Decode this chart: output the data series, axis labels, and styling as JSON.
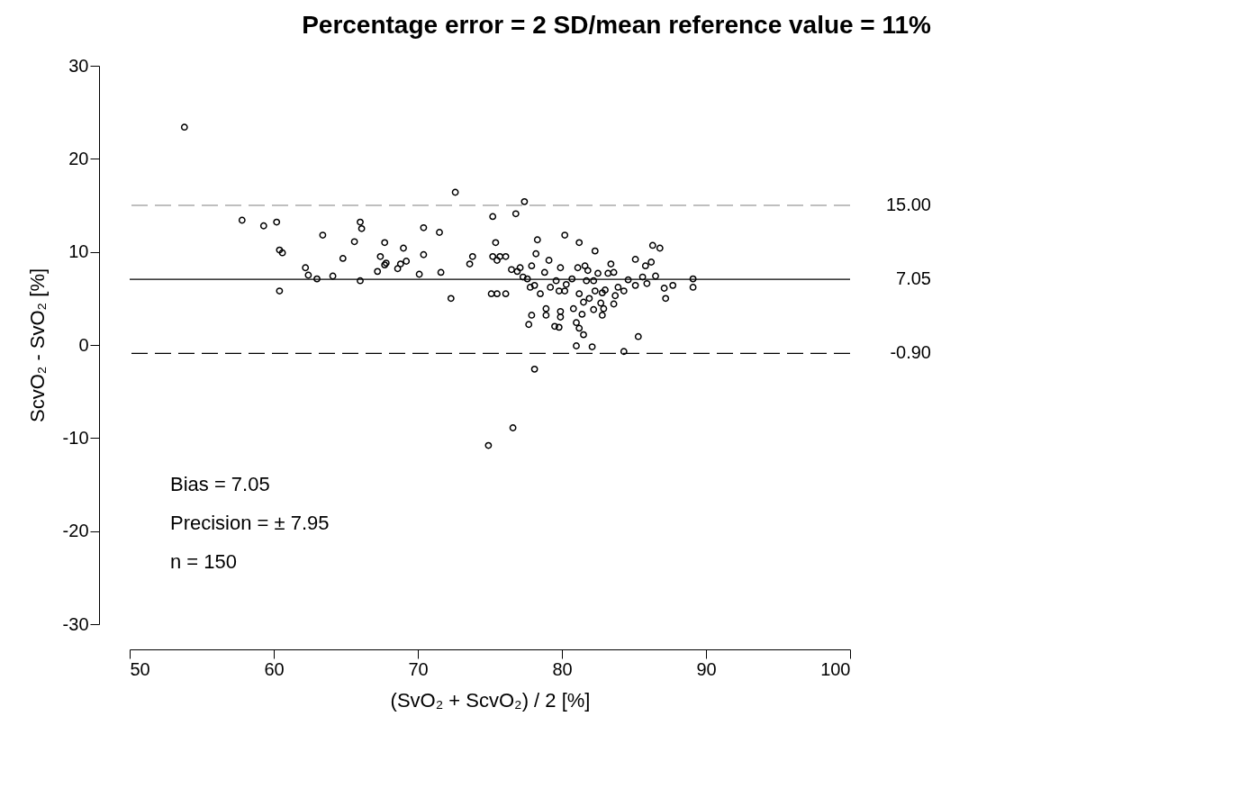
{
  "chart_data": {
    "type": "scatter",
    "title": "Percentage error = 2 SD/mean reference value = 11%",
    "xlabel": "(SvO₂ + ScvO₂) / 2 [%]",
    "ylabel": "ScvO₂ - SvO₂ [%]",
    "xlim": [
      50,
      100
    ],
    "ylim": [
      -30,
      30
    ],
    "xticks": [
      50,
      60,
      70,
      80,
      90,
      100
    ],
    "yticks": [
      -30,
      -20,
      -10,
      0,
      10,
      20,
      30
    ],
    "grid": false,
    "marker": "circle",
    "x": [
      53.8,
      57.8,
      59.3,
      60.2,
      60.4,
      60.6,
      60.4,
      62.2,
      62.4,
      63.0,
      63.4,
      64.1,
      64.8,
      65.6,
      66.0,
      66.1,
      66.0,
      67.2,
      67.4,
      67.7,
      67.7,
      67.8,
      68.6,
      68.8,
      69.0,
      69.2,
      70.1,
      70.4,
      70.4,
      71.5,
      71.6,
      72.3,
      72.6,
      73.6,
      73.8,
      74.9,
      75.1,
      75.2,
      75.4,
      75.2,
      75.5,
      75.5,
      75.7,
      76.1,
      76.1,
      76.5,
      76.8,
      76.6,
      76.9,
      77.1,
      77.4,
      77.3,
      77.6,
      77.9,
      77.8,
      77.9,
      77.7,
      78.1,
      78.2,
      78.3,
      78.1,
      78.5,
      78.8,
      78.9,
      78.9,
      79.1,
      79.2,
      79.5,
      79.6,
      79.8,
      79.8,
      79.9,
      79.9,
      79.9,
      80.2,
      80.2,
      80.3,
      80.7,
      80.8,
      81.0,
      81.0,
      81.1,
      81.2,
      81.2,
      81.2,
      81.4,
      81.5,
      81.5,
      81.6,
      81.7,
      81.8,
      81.9,
      82.1,
      82.2,
      82.3,
      82.2,
      82.3,
      82.5,
      82.7,
      82.8,
      82.8,
      82.9,
      83.0,
      83.2,
      83.4,
      83.6,
      83.6,
      83.7,
      83.9,
      84.3,
      84.3,
      84.6,
      85.1,
      85.1,
      85.3,
      85.6,
      85.8,
      85.9,
      86.2,
      86.3,
      86.5,
      86.8,
      87.1,
      87.2,
      87.7,
      89.1,
      89.1
    ],
    "series": [
      {
        "color": "#000000",
        "values": [
          23.4,
          13.4,
          12.8,
          13.2,
          10.2,
          9.9,
          5.8,
          8.3,
          7.5,
          7.1,
          11.8,
          7.4,
          9.3,
          11.1,
          13.2,
          12.5,
          6.9,
          7.9,
          9.5,
          11.0,
          8.6,
          8.8,
          8.2,
          8.7,
          10.4,
          9.0,
          7.6,
          9.7,
          12.6,
          12.1,
          7.8,
          5.0,
          16.4,
          8.7,
          9.5,
          -10.8,
          5.5,
          13.8,
          11.0,
          9.5,
          9.1,
          5.5,
          9.5,
          9.5,
          5.5,
          8.1,
          14.1,
          -8.9,
          7.9,
          8.3,
          15.4,
          7.3,
          7.1,
          8.5,
          6.2,
          3.2,
          2.2,
          -2.6,
          9.8,
          11.3,
          6.4,
          5.5,
          7.8,
          3.9,
          3.2,
          9.1,
          6.2,
          2.0,
          6.9,
          5.8,
          1.9,
          3.6,
          3.0,
          8.3,
          11.8,
          5.8,
          6.5,
          7.1,
          3.9,
          -0.1,
          2.4,
          8.3,
          11.0,
          1.8,
          5.5,
          3.3,
          4.6,
          1.1,
          8.5,
          6.9,
          8.0,
          5.0,
          -0.2,
          3.8,
          10.1,
          6.9,
          5.8,
          7.7,
          4.5,
          3.2,
          5.6,
          3.9,
          5.9,
          7.7,
          8.7,
          7.8,
          4.4,
          5.3,
          6.2,
          -0.7,
          5.8,
          7.0,
          9.2,
          6.4,
          0.9,
          7.3,
          8.5,
          6.6,
          8.9,
          10.7,
          7.4,
          10.4,
          6.1,
          5.0,
          6.4,
          7.1,
          6.2
        ]
      }
    ],
    "ref_lines": [
      {
        "axis": "y",
        "value": 15.0,
        "label": "15.00",
        "color": "#aaaaaa",
        "line_style": "dashed"
      },
      {
        "axis": "y",
        "value": 7.05,
        "label": "7.05",
        "color": "#000000",
        "line_style": "solid"
      },
      {
        "axis": "y",
        "value": -0.9,
        "label": "-0.90",
        "color": "#000000",
        "line_style": "dashed"
      }
    ],
    "annotations": [
      "Bias = 7.05",
      "Precision = ± 7.95",
      "n = 150"
    ]
  }
}
